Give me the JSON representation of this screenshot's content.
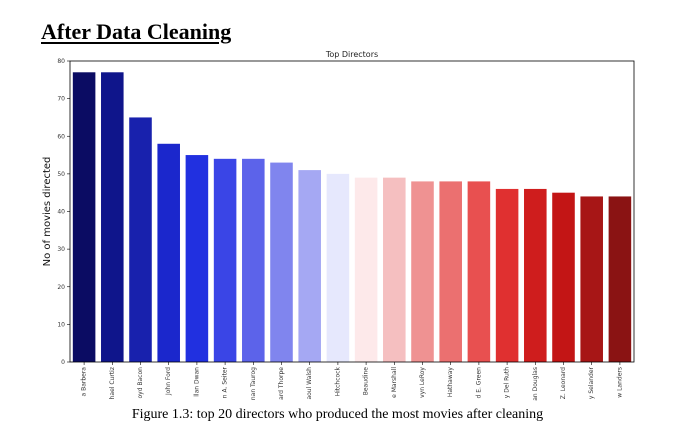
{
  "page": {
    "heading": "After Data Cleaning",
    "caption": "Figure 1.3:  top 20 directors who produced the most movies  after cleaning"
  },
  "chart_data": {
    "type": "bar",
    "title": "Top Directors",
    "xlabel": "",
    "ylabel": "No of movies directed",
    "ylim": [
      0,
      80
    ],
    "yticks": [
      0,
      10,
      20,
      30,
      40,
      50,
      60,
      70,
      80
    ],
    "grid": false,
    "categories": [
      "a Barbera",
      "hael Curtiz",
      "oyd Bacon",
      "John Ford",
      "llan Dwan",
      "n A. Seiter",
      "nan Taurog",
      "ard Thorpe",
      "aoul Walsh",
      "Hitchcock",
      "Beaudine",
      "e Marshall",
      "vyn LeRoy",
      "Hathaway",
      "d E. Green",
      "y Del Ruth",
      "an Douglas",
      "Z. Leonard",
      "y Selander",
      "w Landers"
    ],
    "values": [
      77,
      77,
      65,
      58,
      55,
      54,
      54,
      53,
      51,
      50,
      49,
      49,
      48,
      48,
      48,
      46,
      46,
      45,
      44,
      44
    ],
    "colors": [
      "#0b0c63",
      "#0f158b",
      "#1821ad",
      "#1b27cc",
      "#2130e0",
      "#3a45e6",
      "#5c63ea",
      "#8085ee",
      "#a5a8f3",
      "#e6e8fd",
      "#fde9ea",
      "#f5bfc0",
      "#ef9292",
      "#eb7070",
      "#e85050",
      "#e03030",
      "#cf1d1d",
      "#c31515",
      "#a71616",
      "#8a1313"
    ]
  }
}
